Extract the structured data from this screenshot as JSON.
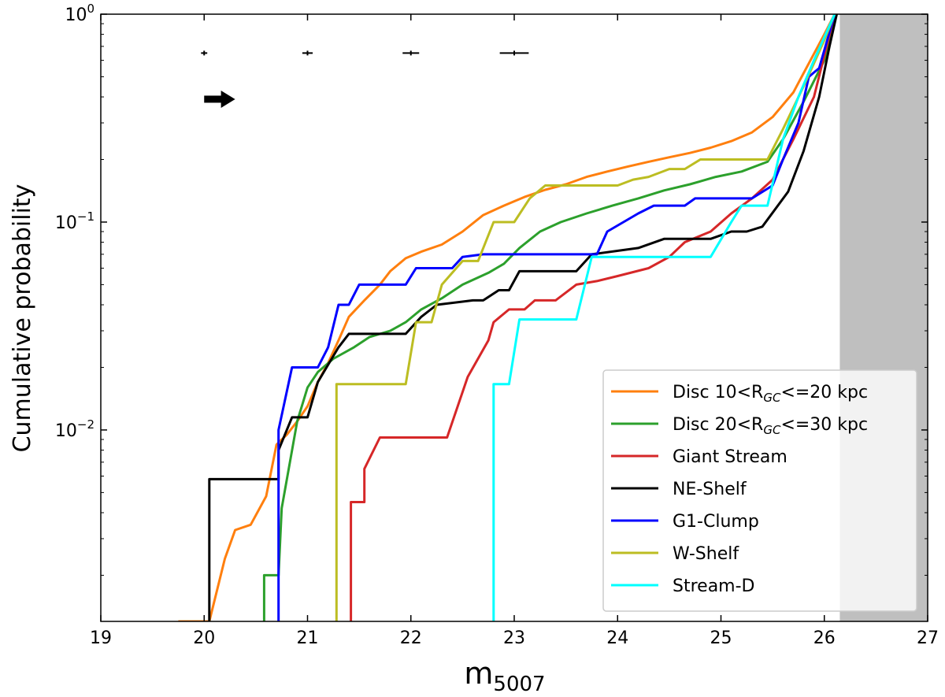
{
  "chart_data": {
    "type": "line",
    "xlabel": "m",
    "xlabel_sub": "5007",
    "ylabel": "Cumulative probability",
    "xlim": [
      19,
      27
    ],
    "ylim": [
      0.0012,
      1
    ],
    "yscale": "log",
    "x_ticks": [
      19,
      20,
      21,
      22,
      23,
      24,
      25,
      26,
      27
    ],
    "x_tick_labels": [
      "19",
      "20",
      "21",
      "22",
      "23",
      "24",
      "25",
      "26",
      "27"
    ],
    "y_ticks": [
      {
        "value": 0.01,
        "base": "10",
        "exp": "−2"
      },
      {
        "value": 0.1,
        "base": "10",
        "exp": "−1"
      },
      {
        "value": 1,
        "base": "10",
        "exp": "0"
      }
    ],
    "shaded_region": {
      "x0": 26.15,
      "x1": 27,
      "color": "#bfbfbf"
    },
    "error_bars": [
      {
        "x": 20.0,
        "xerr": 0.03,
        "y": 0.65
      },
      {
        "x": 21.0,
        "xerr": 0.05,
        "y": 0.65
      },
      {
        "x": 22.0,
        "xerr": 0.08,
        "y": 0.65
      },
      {
        "x": 23.0,
        "xerr": 0.14,
        "y": 0.65
      }
    ],
    "arrow": {
      "x_start": 20.0,
      "x_end": 20.3,
      "y": 0.39,
      "direction": "right"
    },
    "legend_location": "lower-right",
    "series": [
      {
        "name": "Disc 10<R",
        "name_sub": "GC",
        "name_tail": "<=20 kpc",
        "color": "#ff7f0e",
        "points": [
          [
            19.75,
            0.0012
          ],
          [
            19.95,
            0.0012
          ],
          [
            20.05,
            0.0012
          ],
          [
            20.2,
            0.0024
          ],
          [
            20.3,
            0.0033
          ],
          [
            20.45,
            0.0035
          ],
          [
            20.6,
            0.0048
          ],
          [
            20.7,
            0.0085
          ],
          [
            20.8,
            0.0095
          ],
          [
            20.9,
            0.011
          ],
          [
            21.0,
            0.013
          ],
          [
            21.1,
            0.017
          ],
          [
            21.2,
            0.021
          ],
          [
            21.3,
            0.027
          ],
          [
            21.4,
            0.035
          ],
          [
            21.55,
            0.042
          ],
          [
            21.7,
            0.05
          ],
          [
            21.8,
            0.058
          ],
          [
            21.95,
            0.067
          ],
          [
            22.1,
            0.072
          ],
          [
            22.3,
            0.078
          ],
          [
            22.5,
            0.09
          ],
          [
            22.7,
            0.108
          ],
          [
            22.9,
            0.12
          ],
          [
            23.1,
            0.132
          ],
          [
            23.3,
            0.143
          ],
          [
            23.5,
            0.152
          ],
          [
            23.7,
            0.165
          ],
          [
            23.9,
            0.175
          ],
          [
            24.1,
            0.185
          ],
          [
            24.3,
            0.195
          ],
          [
            24.5,
            0.205
          ],
          [
            24.7,
            0.215
          ],
          [
            24.9,
            0.228
          ],
          [
            25.1,
            0.245
          ],
          [
            25.3,
            0.27
          ],
          [
            25.5,
            0.32
          ],
          [
            25.7,
            0.42
          ],
          [
            25.85,
            0.58
          ],
          [
            26.0,
            0.8
          ],
          [
            26.1,
            1.0
          ]
        ]
      },
      {
        "name": "Disc 20<R",
        "name_sub": "GC",
        "name_tail": "<=30 kpc",
        "color": "#2ca02c",
        "points": [
          [
            20.58,
            0.0012
          ],
          [
            20.58,
            0.002
          ],
          [
            20.72,
            0.002
          ],
          [
            20.75,
            0.0042
          ],
          [
            20.9,
            0.011
          ],
          [
            21.0,
            0.016
          ],
          [
            21.1,
            0.019
          ],
          [
            21.25,
            0.022
          ],
          [
            21.45,
            0.025
          ],
          [
            21.6,
            0.028
          ],
          [
            21.8,
            0.03
          ],
          [
            21.95,
            0.033
          ],
          [
            22.1,
            0.038
          ],
          [
            22.3,
            0.043
          ],
          [
            22.5,
            0.05
          ],
          [
            22.75,
            0.057
          ],
          [
            22.9,
            0.063
          ],
          [
            23.05,
            0.075
          ],
          [
            23.25,
            0.09
          ],
          [
            23.45,
            0.1
          ],
          [
            23.7,
            0.11
          ],
          [
            23.95,
            0.12
          ],
          [
            24.2,
            0.13
          ],
          [
            24.45,
            0.142
          ],
          [
            24.7,
            0.152
          ],
          [
            24.95,
            0.165
          ],
          [
            25.2,
            0.175
          ],
          [
            25.45,
            0.195
          ],
          [
            25.6,
            0.25
          ],
          [
            25.8,
            0.38
          ],
          [
            26.0,
            0.6
          ],
          [
            26.1,
            1.0
          ]
        ]
      },
      {
        "name": "Giant Stream",
        "color": "#d62728",
        "points": [
          [
            21.42,
            0.0012
          ],
          [
            21.42,
            0.0045
          ],
          [
            21.55,
            0.0045
          ],
          [
            21.55,
            0.0065
          ],
          [
            21.7,
            0.0092
          ],
          [
            22.35,
            0.0092
          ],
          [
            22.55,
            0.018
          ],
          [
            22.75,
            0.027
          ],
          [
            22.8,
            0.033
          ],
          [
            22.95,
            0.038
          ],
          [
            23.1,
            0.038
          ],
          [
            23.2,
            0.042
          ],
          [
            23.4,
            0.042
          ],
          [
            23.6,
            0.05
          ],
          [
            23.8,
            0.052
          ],
          [
            24.0,
            0.055
          ],
          [
            24.3,
            0.06
          ],
          [
            24.5,
            0.068
          ],
          [
            24.65,
            0.08
          ],
          [
            24.9,
            0.09
          ],
          [
            25.1,
            0.11
          ],
          [
            25.3,
            0.13
          ],
          [
            25.5,
            0.16
          ],
          [
            25.7,
            0.25
          ],
          [
            25.9,
            0.4
          ],
          [
            26.1,
            1.0
          ]
        ]
      },
      {
        "name": "NE-Shelf",
        "color": "#000000",
        "points": [
          [
            20.05,
            0.0012
          ],
          [
            20.05,
            0.0058
          ],
          [
            20.72,
            0.0058
          ],
          [
            20.72,
            0.008
          ],
          [
            20.85,
            0.0115
          ],
          [
            21.0,
            0.0115
          ],
          [
            21.1,
            0.017
          ],
          [
            21.3,
            0.025
          ],
          [
            21.4,
            0.029
          ],
          [
            21.95,
            0.029
          ],
          [
            22.1,
            0.035
          ],
          [
            22.25,
            0.04
          ],
          [
            22.6,
            0.042
          ],
          [
            22.7,
            0.042
          ],
          [
            22.85,
            0.047
          ],
          [
            22.95,
            0.047
          ],
          [
            23.05,
            0.058
          ],
          [
            23.6,
            0.058
          ],
          [
            23.75,
            0.07
          ],
          [
            24.2,
            0.075
          ],
          [
            24.45,
            0.083
          ],
          [
            24.9,
            0.083
          ],
          [
            25.1,
            0.09
          ],
          [
            25.25,
            0.09
          ],
          [
            25.4,
            0.095
          ],
          [
            25.65,
            0.14
          ],
          [
            25.8,
            0.22
          ],
          [
            25.95,
            0.4
          ],
          [
            26.05,
            0.7
          ],
          [
            26.12,
            1.0
          ]
        ]
      },
      {
        "name": "G1-Clump",
        "color": "#0000ff",
        "points": [
          [
            20.72,
            0.0012
          ],
          [
            20.72,
            0.01
          ],
          [
            20.85,
            0.02
          ],
          [
            21.1,
            0.02
          ],
          [
            21.2,
            0.025
          ],
          [
            21.3,
            0.04
          ],
          [
            21.4,
            0.04
          ],
          [
            21.5,
            0.05
          ],
          [
            21.95,
            0.05
          ],
          [
            22.05,
            0.06
          ],
          [
            22.4,
            0.06
          ],
          [
            22.5,
            0.068
          ],
          [
            22.7,
            0.07
          ],
          [
            23.8,
            0.07
          ],
          [
            23.9,
            0.09
          ],
          [
            24.2,
            0.11
          ],
          [
            24.35,
            0.12
          ],
          [
            24.65,
            0.12
          ],
          [
            24.75,
            0.13
          ],
          [
            25.3,
            0.13
          ],
          [
            25.5,
            0.15
          ],
          [
            25.6,
            0.2
          ],
          [
            25.75,
            0.3
          ],
          [
            25.85,
            0.5
          ],
          [
            25.95,
            0.55
          ],
          [
            26.1,
            1.0
          ]
        ]
      },
      {
        "name": "W-Shelf",
        "color": "#bcbd22",
        "points": [
          [
            21.28,
            0.0012
          ],
          [
            21.28,
            0.0166
          ],
          [
            21.95,
            0.0166
          ],
          [
            22.05,
            0.033
          ],
          [
            22.2,
            0.033
          ],
          [
            22.3,
            0.05
          ],
          [
            22.5,
            0.065
          ],
          [
            22.65,
            0.065
          ],
          [
            22.8,
            0.1
          ],
          [
            23.0,
            0.1
          ],
          [
            23.15,
            0.13
          ],
          [
            23.3,
            0.15
          ],
          [
            24.0,
            0.15
          ],
          [
            24.15,
            0.16
          ],
          [
            24.3,
            0.165
          ],
          [
            24.5,
            0.18
          ],
          [
            24.65,
            0.18
          ],
          [
            24.8,
            0.2
          ],
          [
            25.45,
            0.2
          ],
          [
            25.6,
            0.28
          ],
          [
            25.8,
            0.45
          ],
          [
            26.0,
            0.75
          ],
          [
            26.1,
            1.0
          ]
        ]
      },
      {
        "name": "Stream-D",
        "color": "#00ffff",
        "points": [
          [
            22.8,
            0.0012
          ],
          [
            22.8,
            0.0166
          ],
          [
            22.95,
            0.0166
          ],
          [
            23.05,
            0.034
          ],
          [
            23.6,
            0.034
          ],
          [
            23.75,
            0.068
          ],
          [
            24.9,
            0.068
          ],
          [
            25.1,
            0.1
          ],
          [
            25.2,
            0.12
          ],
          [
            25.45,
            0.12
          ],
          [
            25.6,
            0.25
          ],
          [
            25.75,
            0.4
          ],
          [
            25.9,
            0.6
          ],
          [
            26.1,
            1.0
          ]
        ]
      }
    ]
  }
}
